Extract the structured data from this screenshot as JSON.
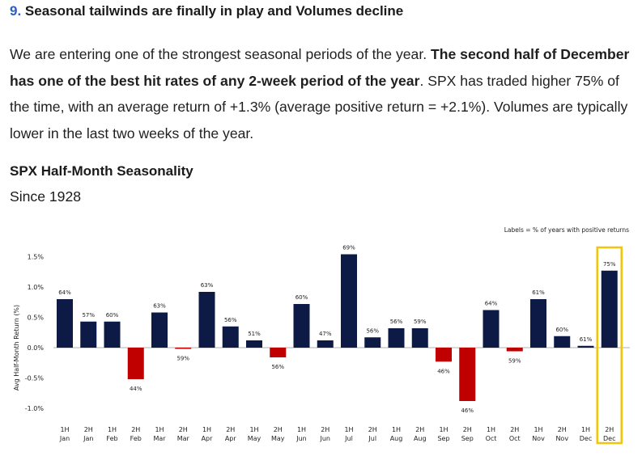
{
  "article": {
    "heading_number": "9.",
    "heading_text": " Seasonal tailwinds are finally in play and Volumes decline",
    "para_part1": "We are entering one of the strongest seasonal periods of the year. ",
    "para_bold": "The second half of December has one of the best hit rates of any 2-week period of the year",
    "para_part2": ". SPX has traded higher 75% of the time, with an average return of +1.3% (average positive return = +2.1%). Volumes are typically lower in the last two weeks of the year."
  },
  "chart_title": "SPX Half-Month Seasonality",
  "chart_subtitle": "Since 1928",
  "colors": {
    "positive": "#0d1a45",
    "negative": "#c00000",
    "highlight": "#f2c40f",
    "zero_line": "#999999"
  },
  "chart_data": {
    "type": "bar",
    "title": "SPX Half-Month Seasonality",
    "subtitle": "Since 1928",
    "note": "Labels = % of years with positive returns",
    "ylabel": "Avg Half-Month Return (%)",
    "ylim": [
      -1.25,
      1.75
    ],
    "yticks": [
      -1.0,
      -0.5,
      0.0,
      0.5,
      1.0,
      1.5
    ],
    "ytick_labels": [
      "-1.0%",
      "-0.5%",
      "0.0%",
      "0.5%",
      "1.0%",
      "1.5%"
    ],
    "categories": [
      [
        "1H",
        "Jan"
      ],
      [
        "2H",
        "Jan"
      ],
      [
        "1H",
        "Feb"
      ],
      [
        "2H",
        "Feb"
      ],
      [
        "1H",
        "Mar"
      ],
      [
        "2H",
        "Mar"
      ],
      [
        "1H",
        "Apr"
      ],
      [
        "2H",
        "Apr"
      ],
      [
        "1H",
        "May"
      ],
      [
        "2H",
        "May"
      ],
      [
        "1H",
        "Jun"
      ],
      [
        "2H",
        "Jun"
      ],
      [
        "1H",
        "Jul"
      ],
      [
        "2H",
        "Jul"
      ],
      [
        "1H",
        "Aug"
      ],
      [
        "2H",
        "Aug"
      ],
      [
        "1H",
        "Sep"
      ],
      [
        "2H",
        "Sep"
      ],
      [
        "1H",
        "Oct"
      ],
      [
        "2H",
        "Oct"
      ],
      [
        "1H",
        "Nov"
      ],
      [
        "2H",
        "Nov"
      ],
      [
        "1H",
        "Dec"
      ],
      [
        "2H",
        "Dec"
      ]
    ],
    "values": [
      0.8,
      0.43,
      0.43,
      -0.52,
      0.58,
      -0.02,
      0.92,
      0.35,
      0.12,
      -0.16,
      0.72,
      0.12,
      1.54,
      0.17,
      0.32,
      0.32,
      -0.23,
      -0.88,
      0.62,
      -0.06,
      0.8,
      0.19,
      0.03,
      1.27
    ],
    "labels": [
      "64%",
      "57%",
      "60%",
      "44%",
      "63%",
      "59%",
      "63%",
      "56%",
      "51%",
      "56%",
      "60%",
      "47%",
      "69%",
      "56%",
      "56%",
      "59%",
      "46%",
      "46%",
      "64%",
      "59%",
      "61%",
      "60%",
      "61%",
      "75%"
    ],
    "highlight_index": 23
  }
}
